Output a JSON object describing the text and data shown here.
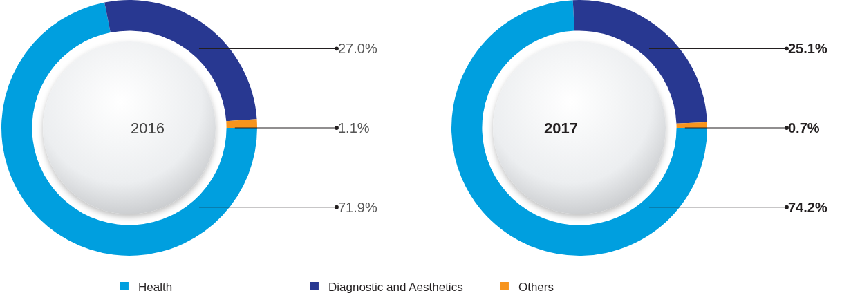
{
  "chart_data": {
    "type": "donut",
    "categories": [
      "Health",
      "Diagnostic and Aesthetics",
      "Others"
    ],
    "colors": [
      "#009fdf",
      "#283891",
      "#f7941d"
    ],
    "legend": "bottom",
    "series": [
      {
        "name": "2016",
        "values": [
          71.9,
          27.0,
          1.1
        ],
        "value_labels": [
          "71.9%",
          "27.0%",
          "1.1%"
        ]
      },
      {
        "name": "2017",
        "values": [
          74.2,
          25.1,
          0.7
        ],
        "value_labels": [
          "74.2%",
          "25.1%",
          "0.7%"
        ]
      }
    ]
  }
}
